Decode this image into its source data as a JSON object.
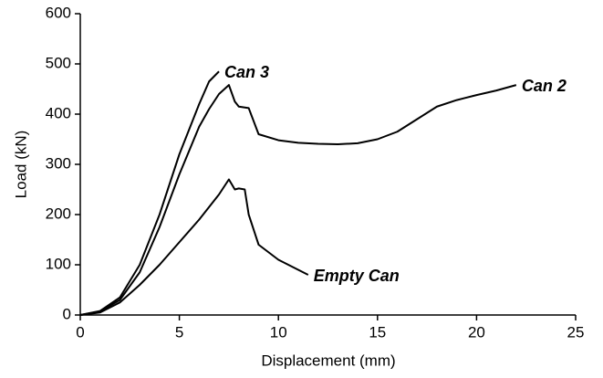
{
  "chart_data": {
    "type": "line",
    "xlabel": "Displacement (mm)",
    "ylabel": "Load (kN)",
    "xlim": [
      0,
      25
    ],
    "xticks": [
      0,
      5,
      10,
      15,
      20,
      25
    ],
    "ylim": [
      0,
      600
    ],
    "yticks": [
      0,
      100,
      200,
      300,
      400,
      500,
      600
    ],
    "grid": false,
    "series": [
      {
        "name": "Can 3",
        "color": "#000000",
        "x": [
          0,
          1,
          2,
          3,
          4,
          5,
          6,
          6.5,
          7
        ],
        "values": [
          0,
          8,
          35,
          100,
          200,
          320,
          420,
          465,
          485
        ]
      },
      {
        "name": "Can 2",
        "color": "#000000",
        "x": [
          0,
          1,
          2,
          3,
          4,
          5,
          6,
          6.5,
          7,
          7.5,
          7.8,
          8,
          8.5,
          9,
          10,
          11,
          12,
          13,
          14,
          15,
          16,
          17,
          18,
          19,
          20,
          21,
          22
        ],
        "values": [
          0,
          7,
          30,
          85,
          175,
          280,
          375,
          410,
          440,
          458,
          425,
          415,
          412,
          360,
          348,
          343,
          341,
          340,
          342,
          350,
          365,
          390,
          415,
          428,
          438,
          447,
          458
        ]
      },
      {
        "name": "Empty Can",
        "color": "#000000",
        "x": [
          0,
          1,
          2,
          3,
          4,
          5,
          6,
          7,
          7.5,
          7.8,
          8,
          8.3,
          8.5,
          9,
          10,
          11,
          11.5
        ],
        "values": [
          0,
          5,
          25,
          60,
          100,
          145,
          190,
          240,
          270,
          250,
          252,
          250,
          200,
          140,
          110,
          90,
          80
        ]
      }
    ]
  }
}
